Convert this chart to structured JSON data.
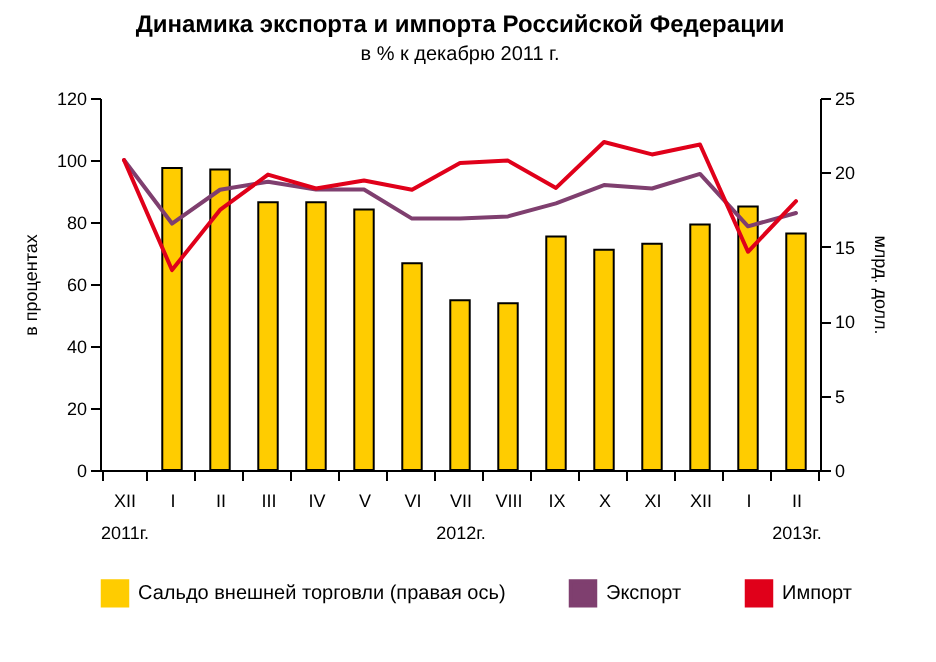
{
  "chart_data": {
    "type": "bar",
    "title": "Динамика экспорта и импорта Российской Федерации",
    "subtitle": "в % к декабрю 2011 г.",
    "categories": [
      "XII",
      "I",
      "II",
      "III",
      "IV",
      "V",
      "VI",
      "VII",
      "VIII",
      "IX",
      "X",
      "XI",
      "XII",
      "I",
      "II"
    ],
    "annotations": [
      "2011г.",
      "2012г.",
      "2013г."
    ],
    "ylabel": "в процентах",
    "y2label": "млрд. долл.",
    "ylim": [
      0,
      120
    ],
    "yticks": [
      0,
      20,
      40,
      60,
      80,
      100,
      120
    ],
    "y2lim": [
      0,
      25
    ],
    "y2ticks": [
      0,
      5,
      10,
      15,
      20,
      25
    ],
    "grid": false,
    "legend": "bottom",
    "series": [
      {
        "name": "Сальдо внешней торговли (правая ось)",
        "axis": "y2",
        "color": "#ffcc00",
        "values": [
          null,
          20.3,
          20.2,
          18.0,
          18.0,
          17.5,
          13.9,
          11.4,
          11.2,
          15.7,
          14.8,
          15.2,
          16.5,
          17.7,
          15.9
        ]
      },
      {
        "name": "Экспорт",
        "type": "line",
        "color": "#7f3f6f",
        "values": [
          100,
          79.5,
          90.4,
          93,
          90.5,
          90.5,
          81.1,
          81.1,
          81.8,
          86,
          91.9,
          90.8,
          95.5,
          78.6,
          82.9
        ]
      },
      {
        "name": "Импорт",
        "type": "line",
        "color": "#e0001a",
        "values": [
          100,
          64.5,
          83.9,
          95.3,
          90.8,
          93.4,
          90.4,
          99,
          99.8,
          91,
          105.8,
          101.8,
          105,
          70.4,
          86.7
        ]
      }
    ]
  }
}
